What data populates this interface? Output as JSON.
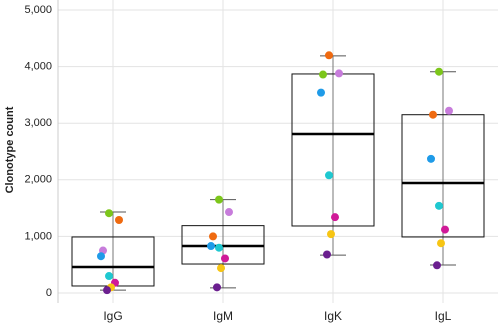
{
  "chart_data": {
    "type": "box",
    "y_label": "Clonotype count",
    "categories": [
      "IgG",
      "IgM",
      "IgK",
      "IgL"
    ],
    "boxes": [
      {
        "whisker_low": 50,
        "q1": 124,
        "median": 460,
        "q3": 990,
        "whisker_high": 1430
      },
      {
        "whisker_low": 90,
        "q1": 512,
        "median": 830,
        "q3": 1190,
        "whisker_high": 1650
      },
      {
        "whisker_low": 670,
        "q1": 1184,
        "median": 2810,
        "q3": 3870,
        "whisker_high": 4190
      },
      {
        "whisker_low": 495,
        "q1": 990,
        "median": 1943,
        "q3": 3150,
        "whisker_high": 3910
      }
    ],
    "points": [
      [
        1410,
        1290,
        750,
        650,
        300,
        180,
        100,
        50
      ],
      [
        1650,
        1430,
        1000,
        830,
        800,
        610,
        440,
        100
      ],
      [
        4200,
        3880,
        3860,
        3540,
        2080,
        1340,
        1040,
        680
      ],
      [
        3910,
        3220,
        3150,
        2370,
        1540,
        1120,
        880,
        490
      ]
    ],
    "point_colors": [
      [
        "#7cc61a",
        "#ef6a10",
        "#c77cdb",
        "#1f9be8",
        "#1fc8d0",
        "#d01a98",
        "#f7c514",
        "#6b1f8f"
      ],
      [
        "#7cc61a",
        "#c77cdb",
        "#ef6a10",
        "#1f9be8",
        "#1fc8d0",
        "#d01a98",
        "#f7c514",
        "#6b1f8f"
      ],
      [
        "#ef6a10",
        "#c77cdb",
        "#7cc61a",
        "#1f9be8",
        "#1fc8d0",
        "#d01a98",
        "#f7c514",
        "#6b1f8f"
      ],
      [
        "#7cc61a",
        "#c77cdb",
        "#ef6a10",
        "#1f9be8",
        "#1fc8d0",
        "#d01a98",
        "#f7c514",
        "#6b1f8f"
      ]
    ],
    "ylim": [
      0,
      5000
    ],
    "yticks": [
      0,
      {
        "value": 1000,
        "label": "1,000"
      },
      {
        "value": 2000,
        "label": "2,000"
      },
      {
        "value": 3000,
        "label": "3,000"
      },
      {
        "value": 4000,
        "label": "4,000"
      },
      {
        "value": 5000,
        "label": "5,000"
      }
    ],
    "grid": true
  }
}
